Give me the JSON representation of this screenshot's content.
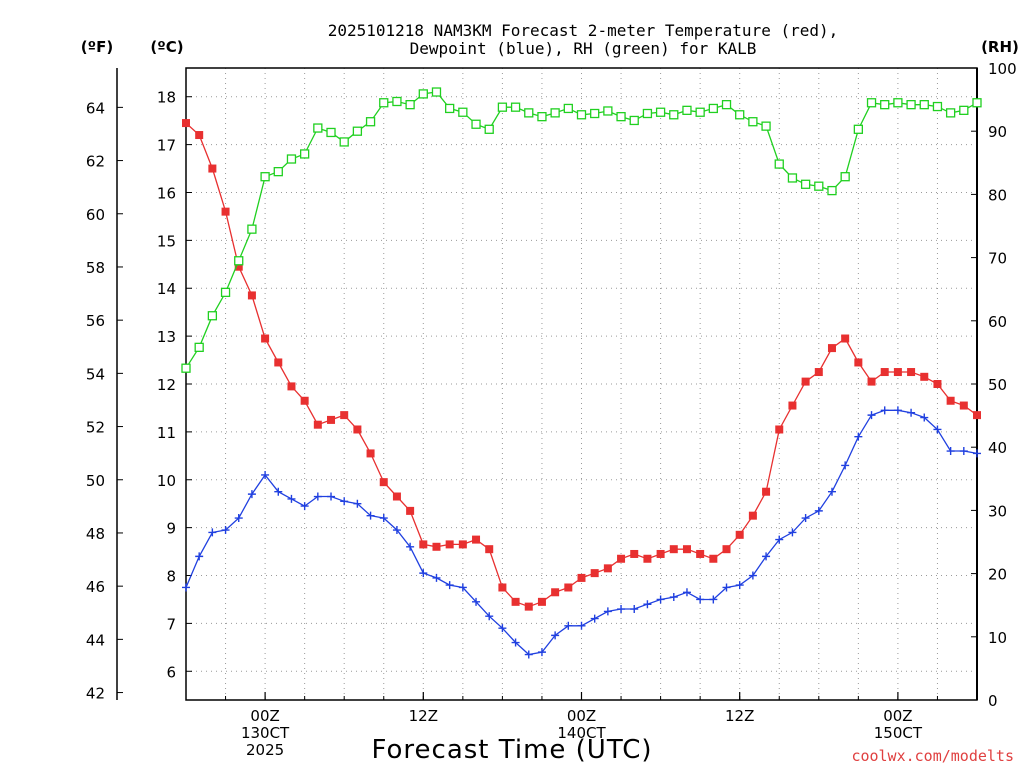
{
  "chart_data": {
    "type": "line",
    "title_lines": [
      "2025101218 NAM3KM Forecast 2-meter Temperature (red),",
      "Dewpoint (blue), RH (green) for KALB"
    ],
    "units": {
      "fahrenheit": "(ºF)",
      "celsius": "(ºC)",
      "rh": "(RH)"
    },
    "xlabel": "Forecast Time (UTC)",
    "credit": "coolwx.com/modelts",
    "x_range_hours": [
      0,
      60
    ],
    "x_ticks": [
      {
        "hour": 6,
        "lines": [
          "00Z",
          "130CT",
          "2025"
        ]
      },
      {
        "hour": 18,
        "lines": [
          "12Z"
        ]
      },
      {
        "hour": 30,
        "lines": [
          "00Z",
          "140CT"
        ]
      },
      {
        "hour": 42,
        "lines": [
          "12Z"
        ]
      },
      {
        "hour": 54,
        "lines": [
          "00Z",
          "150CT"
        ]
      }
    ],
    "y_celsius": {
      "range": [
        5.4,
        18.6
      ],
      "ticks": [
        6,
        7,
        8,
        9,
        10,
        11,
        12,
        13,
        14,
        15,
        16,
        17,
        18
      ]
    },
    "y_fahrenheit": {
      "ticks": [
        42,
        44,
        46,
        48,
        50,
        52,
        54,
        56,
        58,
        60,
        62,
        64
      ]
    },
    "y_rh": {
      "range": [
        0,
        100
      ],
      "ticks": [
        0,
        10,
        20,
        30,
        40,
        50,
        60,
        70,
        80,
        90,
        100
      ]
    },
    "colors": {
      "temperature": "#e83030",
      "dewpoint": "#2040e0",
      "rh": "#20d020",
      "grid": "#9a9a9a",
      "credit": "#e04040"
    },
    "series": [
      {
        "name": "Temperature",
        "unit": "C",
        "marker": "filled-square",
        "color": "#e83030",
        "values": [
          17.45,
          17.2,
          16.5,
          15.6,
          14.45,
          13.85,
          12.95,
          12.45,
          11.95,
          11.65,
          11.15,
          11.25,
          11.35,
          11.05,
          10.55,
          9.95,
          9.65,
          9.35,
          8.65,
          8.6,
          8.65,
          8.65,
          8.75,
          8.55,
          7.75,
          7.45,
          7.35,
          7.45,
          7.65,
          7.75,
          7.95,
          8.05,
          8.15,
          8.35,
          8.45,
          8.35,
          8.45,
          8.55,
          8.55,
          8.45,
          8.35,
          8.55,
          8.85,
          9.25,
          9.75,
          11.05,
          11.55,
          12.05,
          12.25,
          12.75,
          12.95,
          12.45,
          12.05,
          12.25,
          12.25,
          12.25,
          12.15,
          12.0,
          11.65,
          11.55,
          11.35
        ]
      },
      {
        "name": "Dewpoint",
        "unit": "C",
        "marker": "plus",
        "color": "#2040e0",
        "values": [
          7.75,
          8.4,
          8.9,
          8.95,
          9.2,
          9.7,
          10.1,
          9.75,
          9.6,
          9.45,
          9.65,
          9.65,
          9.55,
          9.5,
          9.25,
          9.2,
          8.95,
          8.6,
          8.05,
          7.95,
          7.8,
          7.75,
          7.45,
          7.15,
          6.9,
          6.6,
          6.35,
          6.4,
          6.75,
          6.95,
          6.95,
          7.1,
          7.25,
          7.3,
          7.3,
          7.4,
          7.5,
          7.55,
          7.65,
          7.5,
          7.5,
          7.75,
          7.8,
          8.0,
          8.4,
          8.75,
          8.9,
          9.2,
          9.35,
          9.75,
          10.3,
          10.9,
          11.35,
          11.45,
          11.45,
          11.4,
          11.3,
          11.05,
          10.6,
          10.6,
          10.55
        ]
      },
      {
        "name": "RH",
        "unit": "%",
        "marker": "open-square",
        "color": "#20d020",
        "values": [
          52.5,
          55.8,
          60.8,
          64.5,
          69.5,
          74.5,
          82.8,
          83.6,
          85.6,
          86.4,
          90.5,
          89.8,
          88.3,
          90.0,
          91.5,
          94.5,
          94.7,
          94.2,
          95.9,
          96.2,
          93.6,
          93.0,
          91.1,
          90.3,
          93.8,
          93.8,
          92.9,
          92.3,
          92.9,
          93.6,
          92.6,
          92.8,
          93.2,
          92.3,
          91.7,
          92.8,
          93.0,
          92.6,
          93.3,
          93.0,
          93.6,
          94.2,
          92.6,
          91.5,
          90.8,
          84.8,
          82.6,
          81.6,
          81.3,
          80.6,
          82.8,
          90.3,
          94.5,
          94.2,
          94.5,
          94.2,
          94.2,
          93.9,
          92.9,
          93.3,
          94.5
        ]
      }
    ]
  }
}
